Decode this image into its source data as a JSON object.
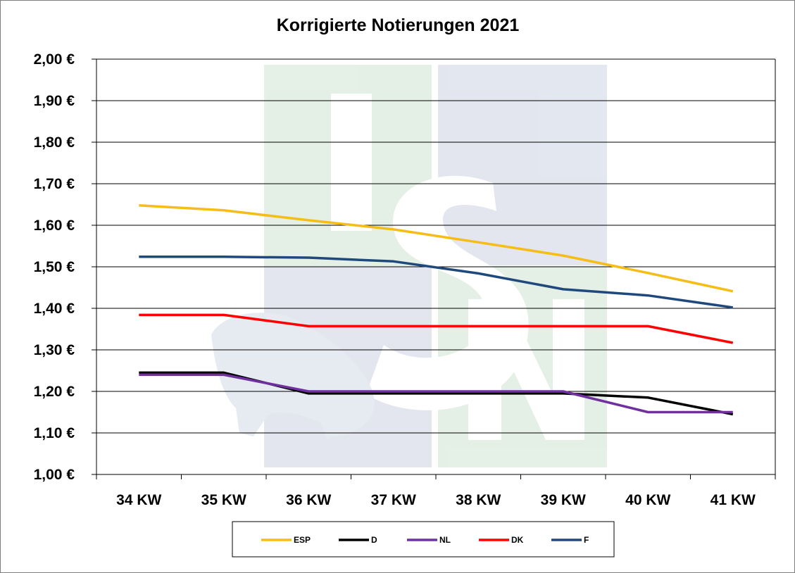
{
  "chart_data": {
    "type": "line",
    "title": "Korrigierte Notierungen 2021",
    "xlabel": "",
    "ylabel": "",
    "categories": [
      "34 KW",
      "35 KW",
      "36 KW",
      "37 KW",
      "38 KW",
      "39 KW",
      "40 KW",
      "41 KW"
    ],
    "ylim": [
      1.0,
      2.0
    ],
    "yticks": [
      "1,00 €",
      "1,10 €",
      "1,20 €",
      "1,30 €",
      "1,40 €",
      "1,50 €",
      "1,60 €",
      "1,70 €",
      "1,80 €",
      "1,90 €",
      "2,00 €"
    ],
    "ytick_values": [
      1.0,
      1.1,
      1.2,
      1.3,
      1.4,
      1.5,
      1.6,
      1.7,
      1.8,
      1.9,
      2.0
    ],
    "grid": "horizontal",
    "legend_position": "bottom",
    "series": [
      {
        "name": "ESP",
        "color": "#f5bd16",
        "values": [
          1.648,
          1.636,
          1.612,
          1.59,
          1.559,
          1.527,
          1.485,
          1.441
        ]
      },
      {
        "name": "D",
        "color": "#000000",
        "values": [
          1.245,
          1.245,
          1.195,
          1.195,
          1.195,
          1.195,
          1.185,
          1.145
        ]
      },
      {
        "name": "NL",
        "color": "#7030a0",
        "values": [
          1.24,
          1.24,
          1.2,
          1.2,
          1.2,
          1.2,
          1.15,
          1.15
        ]
      },
      {
        "name": "DK",
        "color": "#ff0000",
        "values": [
          1.384,
          1.384,
          1.357,
          1.357,
          1.357,
          1.357,
          1.357,
          1.317
        ]
      },
      {
        "name": "F",
        "color": "#1f497d",
        "values": [
          1.524,
          1.524,
          1.522,
          1.513,
          1.484,
          1.446,
          1.431,
          1.402
        ]
      }
    ]
  }
}
